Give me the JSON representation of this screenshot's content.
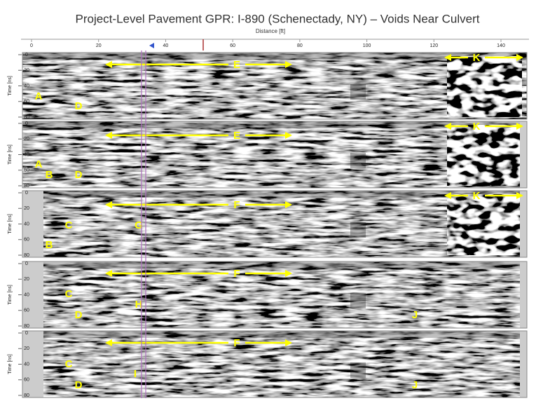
{
  "title": "Project-Level Pavement GPR:  I-890 (Schenectady, NY) – Voids Near Culvert",
  "x_axis": {
    "label": "Distance [ft]",
    "ticks": [
      0,
      20,
      40,
      60,
      80,
      100,
      120,
      140
    ]
  },
  "y_axis": {
    "label": "Time [ns]",
    "ticks": [
      0,
      20,
      40,
      60,
      80
    ]
  },
  "panels": [
    {
      "annotations": [
        "E",
        "A",
        "D",
        "K"
      ]
    },
    {
      "annotations": [
        "E",
        "A",
        "B",
        "D",
        "K"
      ]
    },
    {
      "annotations": [
        "F",
        "C",
        "G",
        "B",
        "K"
      ]
    },
    {
      "annotations": [
        "F",
        "C",
        "H",
        "D",
        "J"
      ]
    },
    {
      "annotations": [
        "F",
        "C",
        "I",
        "D",
        "J"
      ]
    }
  ]
}
